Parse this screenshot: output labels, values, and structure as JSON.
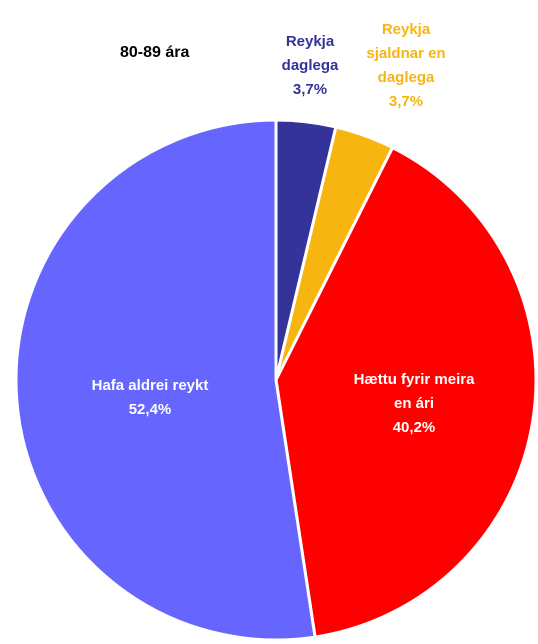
{
  "chart_data": {
    "type": "pie",
    "title": "80-89 ára",
    "categories": [
      "Reykja daglega",
      "Reykja sjaldnar en daglega",
      "Hættu fyrir meira en ári",
      "Hafa aldrei reykt"
    ],
    "values": [
      3.7,
      3.7,
      40.2,
      52.4
    ],
    "value_labels": [
      "3,7%",
      "3,7%",
      "40,2%",
      "52,4%"
    ],
    "colors": [
      "#333399",
      "#f7b50f",
      "#ff0000",
      "#6666ff"
    ]
  }
}
